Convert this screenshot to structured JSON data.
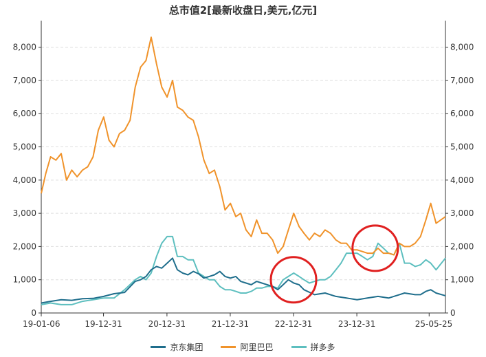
{
  "chart_data": {
    "type": "line",
    "title": "总市值2[最新收盘日,美元,亿元]",
    "xlabel": "",
    "ylabel": "",
    "ylim": [
      0,
      8800
    ],
    "y_ticks": [
      0,
      1000,
      2000,
      3000,
      4000,
      5000,
      6000,
      7000,
      8000
    ],
    "y_tick_labels": [
      "0",
      "1,000",
      "2,000",
      "3,000",
      "4,000",
      "5,000",
      "6,000",
      "7,000",
      "8,000"
    ],
    "x_range": [
      "2019-01-06",
      "2025-05-25"
    ],
    "x_ticks": [
      {
        "date": "2019-01-06",
        "label": "19-01-06"
      },
      {
        "date": "2019-12-31",
        "label": "19-12-31"
      },
      {
        "date": "2020-12-31",
        "label": "20-12-31"
      },
      {
        "date": "2021-12-31",
        "label": "21-12-31"
      },
      {
        "date": "2022-12-31",
        "label": "22-12-31"
      },
      {
        "date": "2023-12-31",
        "label": "23-12-31"
      },
      {
        "date": "2025-05-25",
        "label": "25-05-25"
      }
    ],
    "y_grid": true,
    "legend_position": "bottom",
    "series": [
      {
        "name": "京东集团",
        "color": "#1f6e8c",
        "points": [
          [
            "2019-01-06",
            300
          ],
          [
            "2019-03-01",
            350
          ],
          [
            "2019-05-01",
            400
          ],
          [
            "2019-07-01",
            380
          ],
          [
            "2019-09-01",
            430
          ],
          [
            "2019-11-01",
            440
          ],
          [
            "2020-01-01",
            500
          ],
          [
            "2020-03-01",
            580
          ],
          [
            "2020-05-01",
            620
          ],
          [
            "2020-07-01",
            950
          ],
          [
            "2020-08-01",
            1000
          ],
          [
            "2020-09-01",
            1100
          ],
          [
            "2020-10-01",
            1300
          ],
          [
            "2020-11-01",
            1400
          ],
          [
            "2020-12-01",
            1350
          ],
          [
            "2021-01-01",
            1500
          ],
          [
            "2021-02-01",
            1650
          ],
          [
            "2021-03-01",
            1300
          ],
          [
            "2021-04-01",
            1200
          ],
          [
            "2021-05-01",
            1150
          ],
          [
            "2021-06-01",
            1250
          ],
          [
            "2021-07-01",
            1180
          ],
          [
            "2021-08-01",
            1050
          ],
          [
            "2021-09-01",
            1100
          ],
          [
            "2021-10-01",
            1150
          ],
          [
            "2021-11-01",
            1250
          ],
          [
            "2021-12-01",
            1100
          ],
          [
            "2022-01-01",
            1050
          ],
          [
            "2022-02-01",
            1100
          ],
          [
            "2022-03-01",
            950
          ],
          [
            "2022-04-01",
            900
          ],
          [
            "2022-05-01",
            850
          ],
          [
            "2022-06-01",
            950
          ],
          [
            "2022-07-01",
            900
          ],
          [
            "2022-08-01",
            850
          ],
          [
            "2022-09-01",
            800
          ],
          [
            "2022-10-01",
            700
          ],
          [
            "2022-11-01",
            850
          ],
          [
            "2022-12-01",
            1000
          ],
          [
            "2023-01-01",
            900
          ],
          [
            "2023-02-01",
            850
          ],
          [
            "2023-03-01",
            700
          ],
          [
            "2023-05-01",
            550
          ],
          [
            "2023-07-01",
            600
          ],
          [
            "2023-09-01",
            500
          ],
          [
            "2023-11-01",
            450
          ],
          [
            "2024-01-01",
            400
          ],
          [
            "2024-03-01",
            450
          ],
          [
            "2024-05-01",
            500
          ],
          [
            "2024-07-01",
            450
          ],
          [
            "2024-09-01",
            550
          ],
          [
            "2024-10-01",
            600
          ],
          [
            "2024-12-01",
            550
          ],
          [
            "2025-01-01",
            550
          ],
          [
            "2025-02-01",
            650
          ],
          [
            "2025-03-01",
            700
          ],
          [
            "2025-04-01",
            600
          ],
          [
            "2025-05-25",
            520
          ]
        ]
      },
      {
        "name": "阿里巴巴",
        "color": "#f0932b",
        "points": [
          [
            "2019-01-06",
            3600
          ],
          [
            "2019-02-01",
            4200
          ],
          [
            "2019-03-01",
            4700
          ],
          [
            "2019-04-01",
            4600
          ],
          [
            "2019-05-01",
            4800
          ],
          [
            "2019-06-01",
            4000
          ],
          [
            "2019-07-01",
            4300
          ],
          [
            "2019-08-01",
            4100
          ],
          [
            "2019-09-01",
            4300
          ],
          [
            "2019-10-01",
            4400
          ],
          [
            "2019-11-01",
            4700
          ],
          [
            "2019-12-01",
            5500
          ],
          [
            "2020-01-01",
            5900
          ],
          [
            "2020-02-01",
            5200
          ],
          [
            "2020-03-01",
            5000
          ],
          [
            "2020-04-01",
            5400
          ],
          [
            "2020-05-01",
            5500
          ],
          [
            "2020-06-01",
            5800
          ],
          [
            "2020-07-01",
            6800
          ],
          [
            "2020-08-01",
            7400
          ],
          [
            "2020-09-01",
            7600
          ],
          [
            "2020-10-01",
            8300
          ],
          [
            "2020-11-01",
            7500
          ],
          [
            "2020-12-01",
            6800
          ],
          [
            "2021-01-01",
            6500
          ],
          [
            "2021-02-01",
            7000
          ],
          [
            "2021-03-01",
            6200
          ],
          [
            "2021-04-01",
            6100
          ],
          [
            "2021-05-01",
            5900
          ],
          [
            "2021-06-01",
            5800
          ],
          [
            "2021-07-01",
            5300
          ],
          [
            "2021-08-01",
            4600
          ],
          [
            "2021-09-01",
            4200
          ],
          [
            "2021-10-01",
            4300
          ],
          [
            "2021-11-01",
            3800
          ],
          [
            "2021-12-01",
            3100
          ],
          [
            "2022-01-01",
            3300
          ],
          [
            "2022-02-01",
            2900
          ],
          [
            "2022-03-01",
            3000
          ],
          [
            "2022-04-01",
            2500
          ],
          [
            "2022-05-01",
            2300
          ],
          [
            "2022-06-01",
            2800
          ],
          [
            "2022-07-01",
            2400
          ],
          [
            "2022-08-01",
            2400
          ],
          [
            "2022-09-01",
            2200
          ],
          [
            "2022-10-01",
            1800
          ],
          [
            "2022-11-01",
            2000
          ],
          [
            "2022-12-01",
            2500
          ],
          [
            "2023-01-01",
            3000
          ],
          [
            "2023-02-01",
            2600
          ],
          [
            "2023-03-01",
            2400
          ],
          [
            "2023-04-01",
            2200
          ],
          [
            "2023-05-01",
            2400
          ],
          [
            "2023-06-01",
            2300
          ],
          [
            "2023-07-01",
            2500
          ],
          [
            "2023-08-01",
            2400
          ],
          [
            "2023-09-01",
            2200
          ],
          [
            "2023-10-01",
            2100
          ],
          [
            "2023-11-01",
            2100
          ],
          [
            "2023-12-01",
            1900
          ],
          [
            "2024-01-01",
            1900
          ],
          [
            "2024-02-01",
            1850
          ],
          [
            "2024-03-01",
            1800
          ],
          [
            "2024-04-01",
            1800
          ],
          [
            "2024-05-01",
            1950
          ],
          [
            "2024-06-01",
            1800
          ],
          [
            "2024-07-01",
            1800
          ],
          [
            "2024-08-01",
            1750
          ],
          [
            "2024-09-01",
            2100
          ],
          [
            "2024-10-01",
            2000
          ],
          [
            "2024-11-01",
            2000
          ],
          [
            "2024-12-01",
            2100
          ],
          [
            "2025-01-01",
            2300
          ],
          [
            "2025-02-01",
            2800
          ],
          [
            "2025-03-01",
            3300
          ],
          [
            "2025-04-01",
            2700
          ],
          [
            "2025-05-25",
            2900
          ]
        ]
      },
      {
        "name": "拼多多",
        "color": "#5dbfbf",
        "points": [
          [
            "2019-01-06",
            250
          ],
          [
            "2019-03-01",
            300
          ],
          [
            "2019-05-01",
            250
          ],
          [
            "2019-07-01",
            250
          ],
          [
            "2019-09-01",
            350
          ],
          [
            "2019-11-01",
            400
          ],
          [
            "2020-01-01",
            450
          ],
          [
            "2020-03-01",
            450
          ],
          [
            "2020-05-01",
            700
          ],
          [
            "2020-07-01",
            1000
          ],
          [
            "2020-08-01",
            1100
          ],
          [
            "2020-09-01",
            1000
          ],
          [
            "2020-10-01",
            1200
          ],
          [
            "2020-11-01",
            1700
          ],
          [
            "2020-12-01",
            2100
          ],
          [
            "2021-01-01",
            2300
          ],
          [
            "2021-02-01",
            2300
          ],
          [
            "2021-03-01",
            1700
          ],
          [
            "2021-04-01",
            1700
          ],
          [
            "2021-05-01",
            1600
          ],
          [
            "2021-06-01",
            1600
          ],
          [
            "2021-07-01",
            1200
          ],
          [
            "2021-08-01",
            1100
          ],
          [
            "2021-09-01",
            1000
          ],
          [
            "2021-10-01",
            1000
          ],
          [
            "2021-11-01",
            800
          ],
          [
            "2021-12-01",
            700
          ],
          [
            "2022-01-01",
            700
          ],
          [
            "2022-02-01",
            650
          ],
          [
            "2022-03-01",
            600
          ],
          [
            "2022-04-01",
            600
          ],
          [
            "2022-05-01",
            650
          ],
          [
            "2022-06-01",
            750
          ],
          [
            "2022-07-01",
            750
          ],
          [
            "2022-08-01",
            800
          ],
          [
            "2022-09-01",
            800
          ],
          [
            "2022-10-01",
            750
          ],
          [
            "2022-11-01",
            1000
          ],
          [
            "2022-12-01",
            1100
          ],
          [
            "2023-01-01",
            1200
          ],
          [
            "2023-02-01",
            1100
          ],
          [
            "2023-03-01",
            1000
          ],
          [
            "2023-04-01",
            900
          ],
          [
            "2023-05-01",
            950
          ],
          [
            "2023-06-01",
            1000
          ],
          [
            "2023-07-01",
            1000
          ],
          [
            "2023-08-01",
            1100
          ],
          [
            "2023-09-01",
            1300
          ],
          [
            "2023-10-01",
            1500
          ],
          [
            "2023-11-01",
            1800
          ],
          [
            "2023-12-01",
            1800
          ],
          [
            "2024-01-01",
            1800
          ],
          [
            "2024-02-01",
            1700
          ],
          [
            "2024-03-01",
            1600
          ],
          [
            "2024-04-01",
            1700
          ],
          [
            "2024-05-01",
            2100
          ],
          [
            "2024-06-01",
            1950
          ],
          [
            "2024-07-01",
            1800
          ],
          [
            "2024-08-01",
            1750
          ],
          [
            "2024-09-01",
            2100
          ],
          [
            "2024-10-01",
            1500
          ],
          [
            "2024-11-01",
            1500
          ],
          [
            "2024-12-01",
            1400
          ],
          [
            "2025-01-01",
            1450
          ],
          [
            "2025-02-01",
            1600
          ],
          [
            "2025-03-01",
            1500
          ],
          [
            "2025-04-01",
            1300
          ],
          [
            "2025-05-25",
            1650
          ]
        ]
      }
    ],
    "annotations": [
      {
        "shape": "circle",
        "color": "#e02020",
        "center": [
          "2022-12-31",
          1000
        ]
      },
      {
        "shape": "circle",
        "color": "#e02020",
        "center": [
          "2024-04-15",
          1950
        ]
      }
    ]
  }
}
